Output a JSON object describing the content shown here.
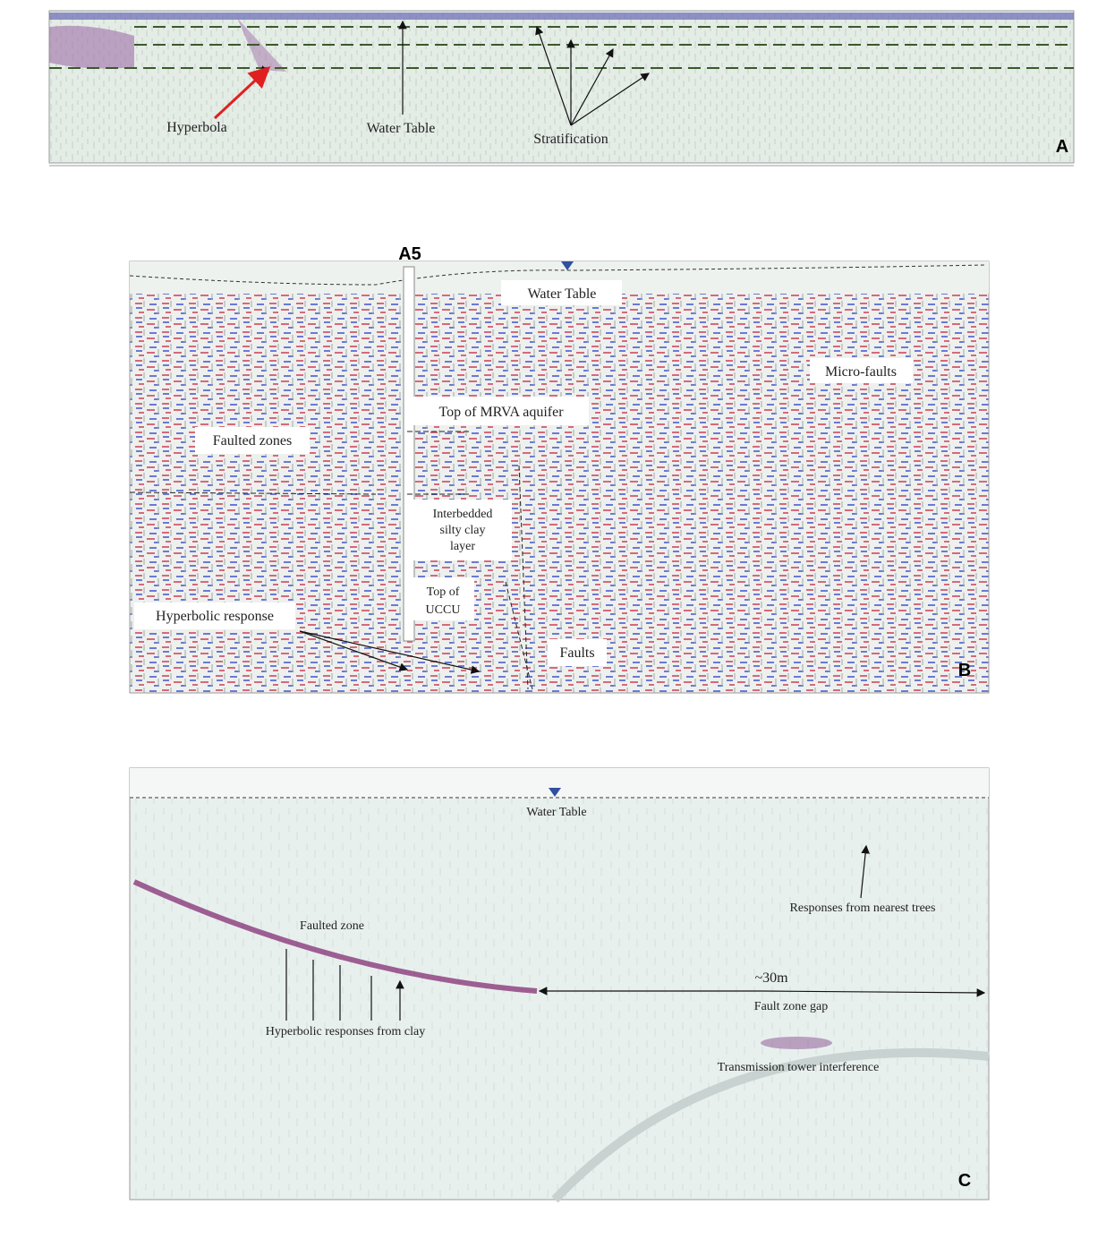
{
  "panels": [
    {
      "label": "A",
      "annotations": [
        [
          "Hyperbola"
        ],
        [
          "Water Table"
        ],
        [
          "Stratification"
        ]
      ]
    },
    {
      "label": "B",
      "marker": "A5",
      "annotations": [
        [
          "Water Table"
        ],
        [
          "Micro-faults"
        ],
        [
          "Top of MRVA aquifer"
        ],
        [
          "Faulted zones"
        ],
        [
          "Interbedded",
          "silty clay",
          "layer"
        ],
        [
          "Top of",
          "UCCU"
        ],
        [
          "Hyperbolic response"
        ],
        [
          "Faults"
        ]
      ]
    },
    {
      "label": "C",
      "annotations": [
        [
          "Water Table"
        ],
        [
          "Responses from nearest trees"
        ],
        [
          "Faulted zone"
        ],
        [
          "~30m"
        ],
        [
          "Fault zone gap"
        ],
        [
          "Hyperbolic responses from clay"
        ],
        [
          "Transmission tower interference"
        ]
      ]
    }
  ]
}
